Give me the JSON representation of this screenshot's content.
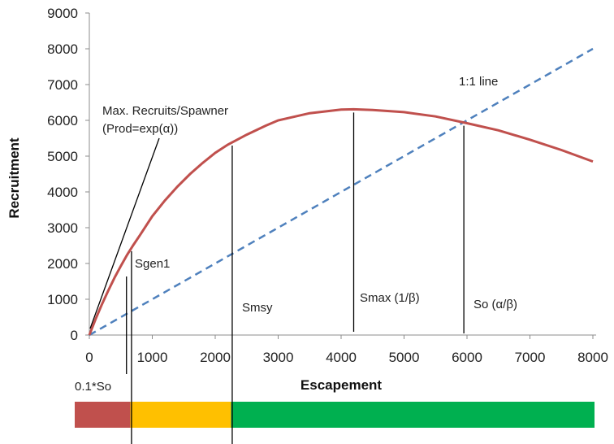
{
  "chart_data": {
    "type": "line",
    "title": "",
    "xlabel": "Escapement",
    "ylabel": "Recruitment",
    "xlim": [
      0,
      8000
    ],
    "ylim": [
      0,
      9000
    ],
    "x_ticks": [
      0,
      1000,
      2000,
      3000,
      4000,
      5000,
      6000,
      7000,
      8000
    ],
    "y_ticks": [
      0,
      1000,
      2000,
      3000,
      4000,
      5000,
      6000,
      7000,
      8000,
      9000
    ],
    "x_tick_labels": [
      "0",
      "1000",
      "2000",
      "3000",
      "4000",
      "5000",
      "6000",
      "7000",
      "8000"
    ],
    "y_tick_labels": [
      "0",
      "1000",
      "2000",
      "3000",
      "4000",
      "5000",
      "6000",
      "7000",
      "8000",
      "9000"
    ],
    "grid": false,
    "colors": {
      "recruitment_curve": "#c0504d",
      "replacement_line": "#4f81bd",
      "zone_red": "#c0504d",
      "zone_yellow": "#ffc000",
      "zone_green": "#00b050"
    },
    "series": [
      {
        "style": "solid",
        "x": [
          0,
          100,
          200,
          300,
          400,
          500,
          600,
          700,
          800,
          1000,
          1200,
          1400,
          1600,
          1800,
          2000,
          2200,
          2500,
          2800,
          3000,
          3500,
          4000,
          4200,
          4500,
          5000,
          5500,
          6000,
          6500,
          7000,
          7500,
          8000
        ],
        "y": [
          0,
          450,
          860,
          1240,
          1600,
          1930,
          2240,
          2520,
          2780,
          3320,
          3760,
          4150,
          4500,
          4810,
          5090,
          5320,
          5600,
          5850,
          6000,
          6200,
          6300,
          6310,
          6290,
          6230,
          6110,
          5920,
          5720,
          5460,
          5170,
          4850
        ]
      },
      {
        "style": "dashed",
        "x": [
          0,
          8000
        ],
        "y": [
          0,
          8000
        ]
      }
    ],
    "annotations": {
      "one_to_one": "1:1 line",
      "max_recruits": "Max. Recruits/Spawner",
      "prod": "(Prod=exp(α))",
      "sgen": "Sgen1",
      "smsy": "Smsy",
      "smax": "Smax (1/β)",
      "so": "So (α/β)",
      "tenth_so": "0.1*So"
    },
    "reference_lines": [
      {
        "name": "0.1*So",
        "x": 590
      },
      {
        "name": "Sgen1",
        "x": 670
      },
      {
        "name": "Smsy",
        "x": 2270
      },
      {
        "name": "Smax",
        "x": 4200
      },
      {
        "name": "So",
        "x": 5950
      }
    ],
    "zones": [
      {
        "from": 0,
        "to": 670,
        "color": "#c0504d"
      },
      {
        "from": 670,
        "to": 2270,
        "color": "#ffc000"
      },
      {
        "from": 2270,
        "to": 8000,
        "color": "#00b050"
      }
    ]
  }
}
